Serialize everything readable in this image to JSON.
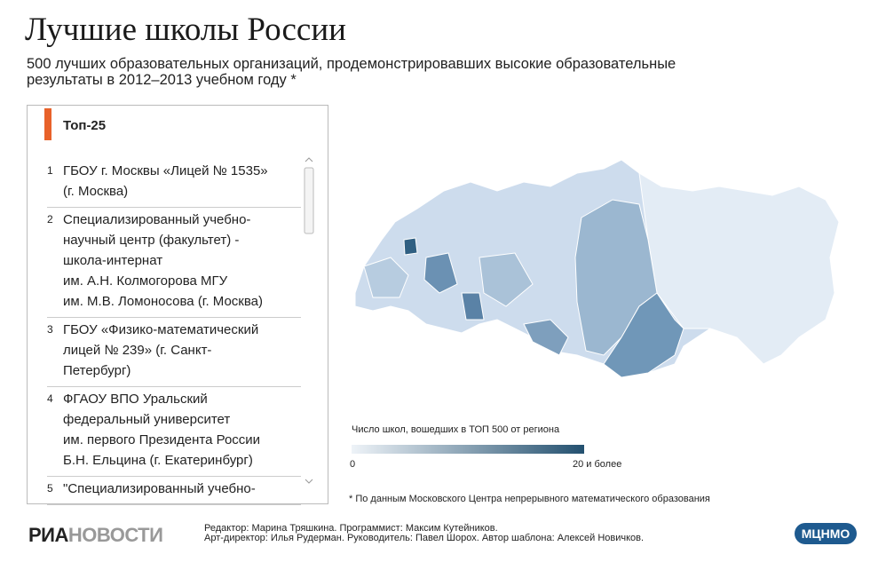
{
  "header": {
    "title": "Лучшие школы России",
    "subtitle_lines": [
      "500 лучших образовательных организаций, продемонстрировавших высокие образовательные",
      "результаты в 2012–2013 учебном году *"
    ]
  },
  "panel": {
    "title": "Топ-25",
    "items": [
      {
        "rank": 1,
        "lines": [
          "ГБОУ г. Москвы «Лицей № 1535»",
          "(г. Москва)"
        ]
      },
      {
        "rank": 2,
        "lines": [
          "Специализированный учебно-",
          "научный центр (факультет) -",
          "школа-интернат",
          "им. А.Н. Колмогорова МГУ",
          "им. М.В. Ломоносова (г. Москва)"
        ]
      },
      {
        "rank": 3,
        "lines": [
          "ГБОУ «Физико-математический",
          "лицей № 239» (г. Санкт-",
          "Петербург)"
        ]
      },
      {
        "rank": 4,
        "lines": [
          "ФГАОУ ВПО Уральский",
          "федеральный университет",
          "им. первого Президента России",
          "Б.Н. Ельцина (г. Екатеринбург)"
        ]
      },
      {
        "rank": 5,
        "lines": [
          "\"Специализированный учебно-"
        ]
      }
    ]
  },
  "legend": {
    "title": "Число школ, вошедших в ТОП 500 от региона",
    "min_label": "0",
    "max_label": "20 и более"
  },
  "footnote": "* По данным Московского Центра непрерывного математического образования",
  "credits": [
    "Редактор: Марина Тряшкина. Программист: Максим Кутейников.",
    "Арт-директор: Илья Рудерман. Руководитель: Павел Шорох. Автор шаблона: Алексей Новичков."
  ],
  "logos": {
    "ria_bold": "РИА",
    "ria_light": "НОВОСТИ",
    "partner": "МЦНМО"
  }
}
